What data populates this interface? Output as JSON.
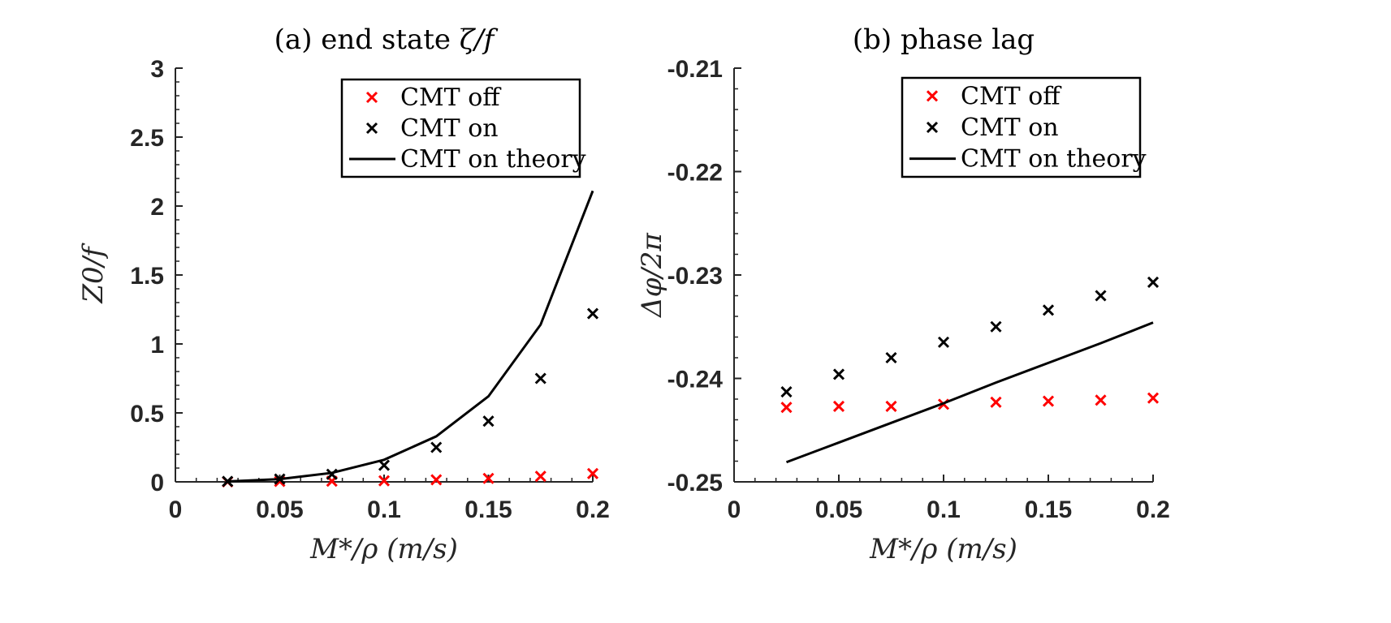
{
  "chart_data": [
    {
      "id": "a",
      "type": "scatter",
      "title_prefix": "(a)",
      "title_text": "end state",
      "title_math": "ζ̅/f",
      "xlabel": "M*/ρ (m/s)",
      "ylabel": "Z0/f",
      "xlim": [
        0,
        0.2
      ],
      "ylim": [
        0,
        3
      ],
      "xticks": [
        0,
        0.05,
        0.1,
        0.15,
        0.2
      ],
      "xtick_labels": [
        "0",
        "0.05",
        "0.1",
        "0.15",
        "0.2"
      ],
      "yticks": [
        0,
        0.5,
        1,
        1.5,
        2,
        2.5,
        3
      ],
      "ytick_labels": [
        "0",
        "0.5",
        "1",
        "1.5",
        "2",
        "2.5",
        "3"
      ],
      "x": [
        0.025,
        0.05,
        0.075,
        0.1,
        0.125,
        0.15,
        0.175,
        0.2
      ],
      "series": [
        {
          "name": "CMT off",
          "kind": "marker",
          "color": "#ff0000",
          "values": [
            0.0,
            0.003,
            0.005,
            0.008,
            0.015,
            0.025,
            0.04,
            0.06
          ]
        },
        {
          "name": "CMT on",
          "kind": "marker",
          "color": "#000000",
          "values": [
            0.003,
            0.02,
            0.055,
            0.12,
            0.25,
            0.44,
            0.75,
            1.22
          ]
        },
        {
          "name": "CMT on theory",
          "kind": "line",
          "color": "#000000",
          "values": [
            0.003,
            0.02,
            0.065,
            0.16,
            0.33,
            0.62,
            1.14,
            2.11
          ]
        }
      ]
    },
    {
      "id": "b",
      "type": "scatter",
      "title_prefix": "(b)",
      "title_text": "phase lag",
      "xlabel": "M*/ρ (m/s)",
      "ylabel": "Δφ/2π",
      "xlim": [
        0,
        0.2
      ],
      "ylim": [
        -0.25,
        -0.21
      ],
      "xticks": [
        0,
        0.05,
        0.1,
        0.15,
        0.2
      ],
      "xtick_labels": [
        "0",
        "0.05",
        "0.1",
        "0.15",
        "0.2"
      ],
      "yticks": [
        -0.25,
        -0.24,
        -0.23,
        -0.22,
        -0.21
      ],
      "ytick_labels": [
        "-0.25",
        "-0.24",
        "-0.23",
        "-0.22",
        "-0.21"
      ],
      "x": [
        0.025,
        0.05,
        0.075,
        0.1,
        0.125,
        0.15,
        0.175,
        0.2
      ],
      "series": [
        {
          "name": "CMT off",
          "kind": "marker",
          "color": "#ff0000",
          "values": [
            -0.2428,
            -0.2427,
            -0.2427,
            -0.2425,
            -0.2423,
            -0.2422,
            -0.2421,
            -0.2419
          ]
        },
        {
          "name": "CMT on",
          "kind": "marker",
          "color": "#000000",
          "values": [
            -0.2413,
            -0.2396,
            -0.238,
            -0.2365,
            -0.235,
            -0.2334,
            -0.232,
            -0.2307
          ]
        },
        {
          "name": "CMT on theory",
          "kind": "line",
          "color": "#000000",
          "values": [
            -0.2481,
            -0.2462,
            -0.2443,
            -0.2424,
            -0.2404,
            -0.2385,
            -0.2366,
            -0.2346
          ]
        }
      ]
    }
  ]
}
